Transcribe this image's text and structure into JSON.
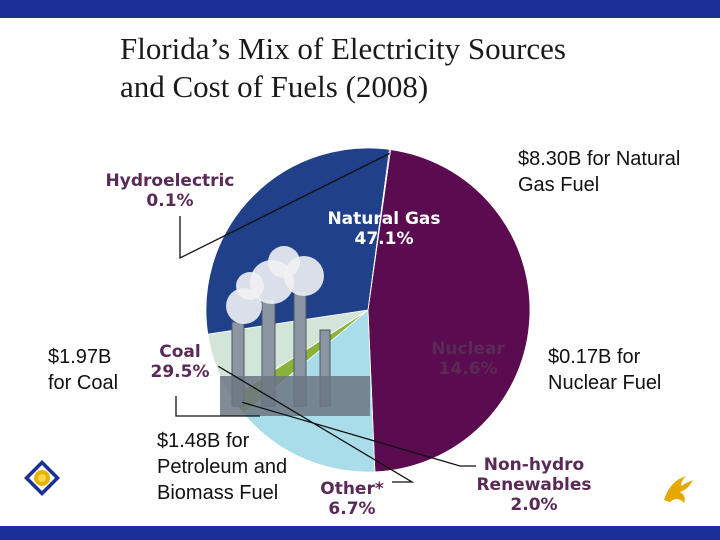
{
  "title_lines": [
    "Florida’s Mix of Electricity Sources",
    "and Cost of Fuels (2008)"
  ],
  "callouts": {
    "natural_gas": [
      "$8.30B for Natural",
      "Gas Fuel"
    ],
    "coal": [
      "$1.97B",
      "for Coal"
    ],
    "nuclear": [
      "$0.17B for",
      "Nuclear Fuel"
    ],
    "other": [
      "$1.48B for",
      "Petroleum and",
      "Biomass Fuel"
    ]
  },
  "colors": {
    "bars": "#1c2f96",
    "natural_gas": "#5b0b4f",
    "coal": "#20408a",
    "nuclear": "#a8dde9",
    "non_hydro": "#8ab13a",
    "other": "#d3e4d9",
    "hydro": "#6b1060"
  },
  "chart_data": {
    "type": "pie",
    "title": "Florida’s Mix of Electricity Sources and Cost of Fuels (2008)",
    "slices": [
      {
        "label": "Natural Gas",
        "value": 47.1,
        "value_label": "47.1%"
      },
      {
        "label": "Nuclear",
        "value": 14.6,
        "value_label": "14.6%"
      },
      {
        "label": "Non-hydro Renewables",
        "label_lines": [
          "Non-hydro",
          "Renewables"
        ],
        "value": 2.0,
        "value_label": "2.0%"
      },
      {
        "label": "Other*",
        "value": 6.7,
        "value_label": "6.7%"
      },
      {
        "label": "Coal",
        "value": 29.5,
        "value_label": "29.5%"
      },
      {
        "label": "Hydroelectric",
        "value": 0.1,
        "value_label": "0.1%"
      }
    ]
  }
}
